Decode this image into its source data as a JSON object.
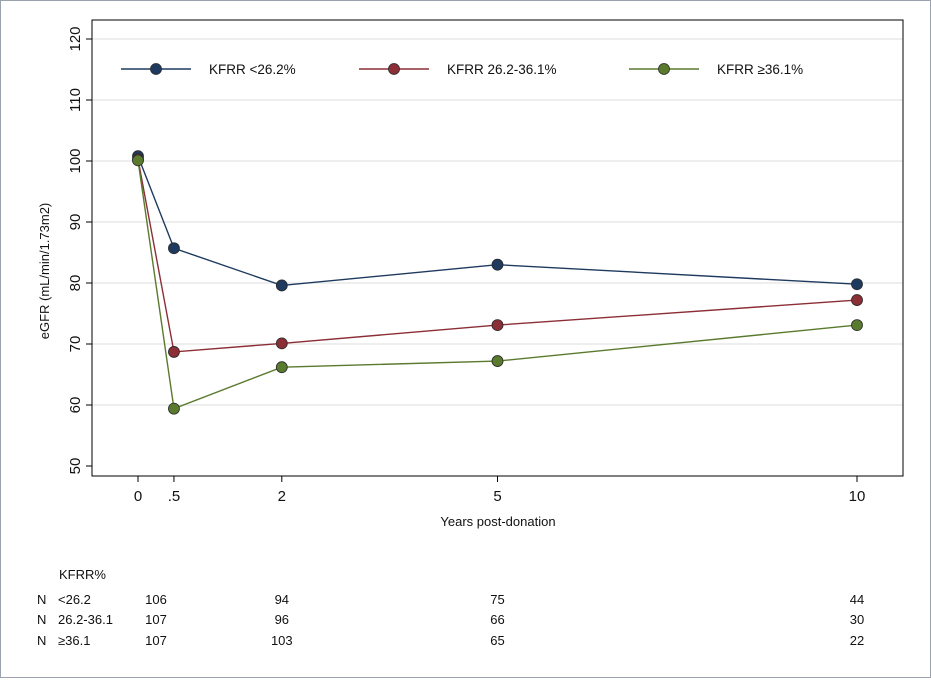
{
  "chart_data": {
    "type": "line",
    "title": "",
    "xlabel": "Years post-donation",
    "ylabel": "eGFR (mL/min/1.73m2)",
    "x": [
      0,
      0.5,
      2,
      5,
      10
    ],
    "x_tick_labels": [
      "0",
      ".5",
      "2",
      "5",
      "10"
    ],
    "ylim": [
      50,
      120
    ],
    "y_ticks": [
      50,
      60,
      70,
      80,
      90,
      100,
      110,
      120
    ],
    "grid": true,
    "legend": "top",
    "series": [
      {
        "name": "KFRR <26.2%",
        "color": "#1f3a5f",
        "values": [
          100.8,
          85.7,
          79.6,
          83.0,
          79.8
        ]
      },
      {
        "name": "KFRR 26.2-36.1%",
        "color": "#8b2e36",
        "values": [
          100.3,
          68.7,
          70.1,
          73.1,
          77.2
        ]
      },
      {
        "name": "KFRR ≥36.1%",
        "color": "#5a7a2e",
        "values": [
          100.1,
          59.4,
          66.2,
          67.2,
          73.1
        ]
      }
    ],
    "risk_table": {
      "header": "KFRR%",
      "rows": [
        {
          "prefix": "N",
          "label": "<26.2",
          "counts": [
            "106",
            "94",
            "75",
            "44"
          ]
        },
        {
          "prefix": "N",
          "label": "26.2-36.1",
          "counts": [
            "107",
            "96",
            "66",
            "30"
          ]
        },
        {
          "prefix": "N",
          "label": "≥36.1",
          "counts": [
            "107",
            "103",
            "65",
            "22"
          ]
        }
      ]
    }
  }
}
